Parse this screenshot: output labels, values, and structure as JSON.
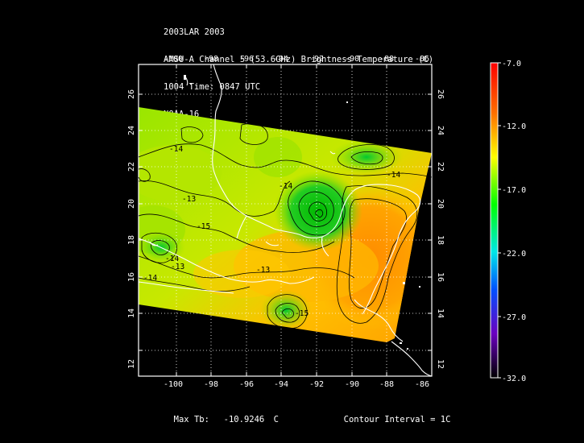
{
  "header": {
    "line1": "2003LAR 2003",
    "line2": "AMSU-A Channel 5 (53.6GHz) Brightness Temperature (C)",
    "line3": "1004 Time: 0847 UTC",
    "line4": "NOAA-16"
  },
  "footer": {
    "max_label": "Max Tb:",
    "max_value": "-10.9246",
    "max_unit": "C",
    "contour_text": "Contour Interval = 1C"
  },
  "map": {
    "lon_ticks_bottom": [
      "-100",
      "-98",
      "-96",
      "-94",
      "-92",
      "-90",
      "-88",
      "-86"
    ],
    "lon_ticks_top": [
      "-100",
      "-98",
      "-96",
      "-94",
      "-92",
      "-90",
      "-88",
      "-86"
    ],
    "lat_ticks_left": [
      "26",
      "24",
      "22",
      "20",
      "18",
      "16",
      "14",
      "12"
    ],
    "lat_ticks_right": [
      "26",
      "24",
      "22",
      "20",
      "18",
      "16",
      "14",
      "12"
    ],
    "contour_labels": [
      "-14",
      "-13",
      "-15",
      "-14",
      "-13",
      "-14",
      "-13",
      "-14",
      "-15",
      "-14"
    ]
  },
  "colorbar": {
    "labels": [
      "-7.0",
      "-12.0",
      "-17.0",
      "-22.0",
      "-27.0",
      "-32.0"
    ],
    "colors": [
      "#ff0000",
      "#ff8800",
      "#ffff00",
      "#00ff00",
      "#00d0ff",
      "#0040ff",
      "#6a00c0",
      "#000000"
    ]
  }
}
